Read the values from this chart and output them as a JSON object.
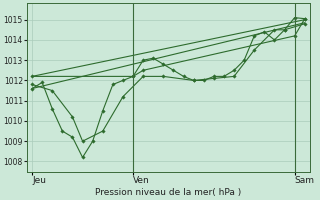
{
  "background_color": "#cce8d8",
  "grid_color": "#aaccbb",
  "line_color": "#2d6b2d",
  "marker_color": "#2d6b2d",
  "title": "Pression niveau de la mer( hPa )",
  "xlabel_jeu": "Jeu",
  "xlabel_ven": "Ven",
  "xlabel_sam": "Sam",
  "ylim": [
    1007.5,
    1015.8
  ],
  "yticks": [
    1008,
    1009,
    1010,
    1011,
    1012,
    1013,
    1014,
    1015
  ],
  "series": [
    {
      "x": [
        0,
        1,
        2,
        3,
        4,
        5,
        6,
        7,
        8,
        9,
        10,
        11,
        12,
        13,
        14,
        15,
        16,
        17,
        18,
        19,
        20,
        21,
        22,
        23,
        24,
        25,
        26,
        27
      ],
      "y": [
        1011.6,
        1011.9,
        1010.6,
        1009.5,
        1009.2,
        1008.2,
        1009.0,
        1010.5,
        1011.8,
        1012.0,
        1012.2,
        1013.0,
        1013.1,
        1012.8,
        1012.5,
        1012.2,
        1012.0,
        1012.0,
        1012.2,
        1012.2,
        1012.5,
        1013.0,
        1014.2,
        1014.4,
        1014.0,
        1014.5,
        1015.1,
        1015.05
      ]
    },
    {
      "x": [
        0,
        27
      ],
      "y": [
        1012.2,
        1015.0
      ],
      "no_marker": true
    },
    {
      "x": [
        0,
        27
      ],
      "y": [
        1011.6,
        1014.85
      ],
      "no_marker": true
    },
    {
      "x": [
        0,
        10,
        11,
        26,
        27
      ],
      "y": [
        1012.2,
        1012.2,
        1012.5,
        1014.2,
        1015.05
      ]
    },
    {
      "x": [
        0,
        2,
        4,
        5,
        7,
        9,
        11,
        13,
        16,
        18,
        20,
        22,
        24,
        25,
        27
      ],
      "y": [
        1011.8,
        1011.5,
        1010.2,
        1009.0,
        1009.5,
        1011.2,
        1012.2,
        1012.2,
        1012.0,
        1012.1,
        1012.2,
        1013.5,
        1014.5,
        1014.5,
        1014.8
      ]
    }
  ],
  "vline_positions": [
    10,
    26
  ],
  "xtick_positions": [
    0,
    10,
    26
  ],
  "total_steps": 27
}
